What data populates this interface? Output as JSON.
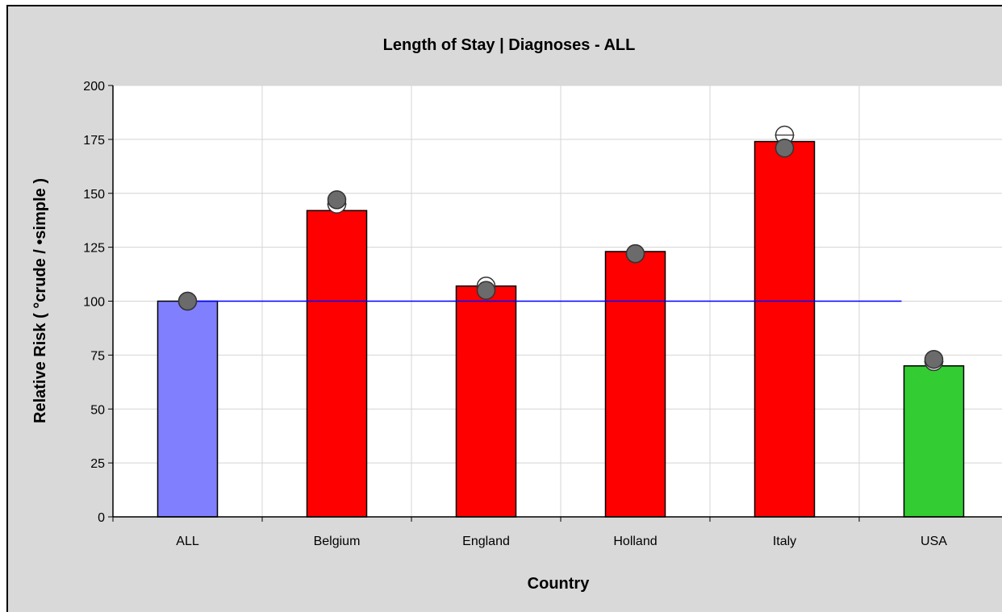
{
  "chart_data": {
    "type": "bar",
    "title": "Length of Stay | Diagnoses - ALL",
    "xlabel": "Country",
    "ylabel": "Relative Risk ( °crude / •simple )",
    "categories": [
      "ALL",
      "Belgium",
      "England",
      "Holland",
      "Italy",
      "USA"
    ],
    "values": [
      100,
      142,
      107,
      123,
      174,
      70
    ],
    "bar_colors": [
      "#8080ff",
      "#ff0000",
      "#ff0000",
      "#ff0000",
      "#ff0000",
      "#33cc33"
    ],
    "crude": [
      100,
      145,
      107,
      122,
      177,
      72
    ],
    "simple": [
      100,
      147,
      105,
      122,
      171,
      73
    ],
    "reference_line": 100,
    "reference_color": "#0000ff",
    "ylim": [
      0,
      200
    ],
    "yticks": [
      0,
      25,
      50,
      75,
      100,
      125,
      150,
      175,
      200
    ],
    "grid": true,
    "plot_background": "#ffffff",
    "frame_background": "#d9d9d9"
  }
}
